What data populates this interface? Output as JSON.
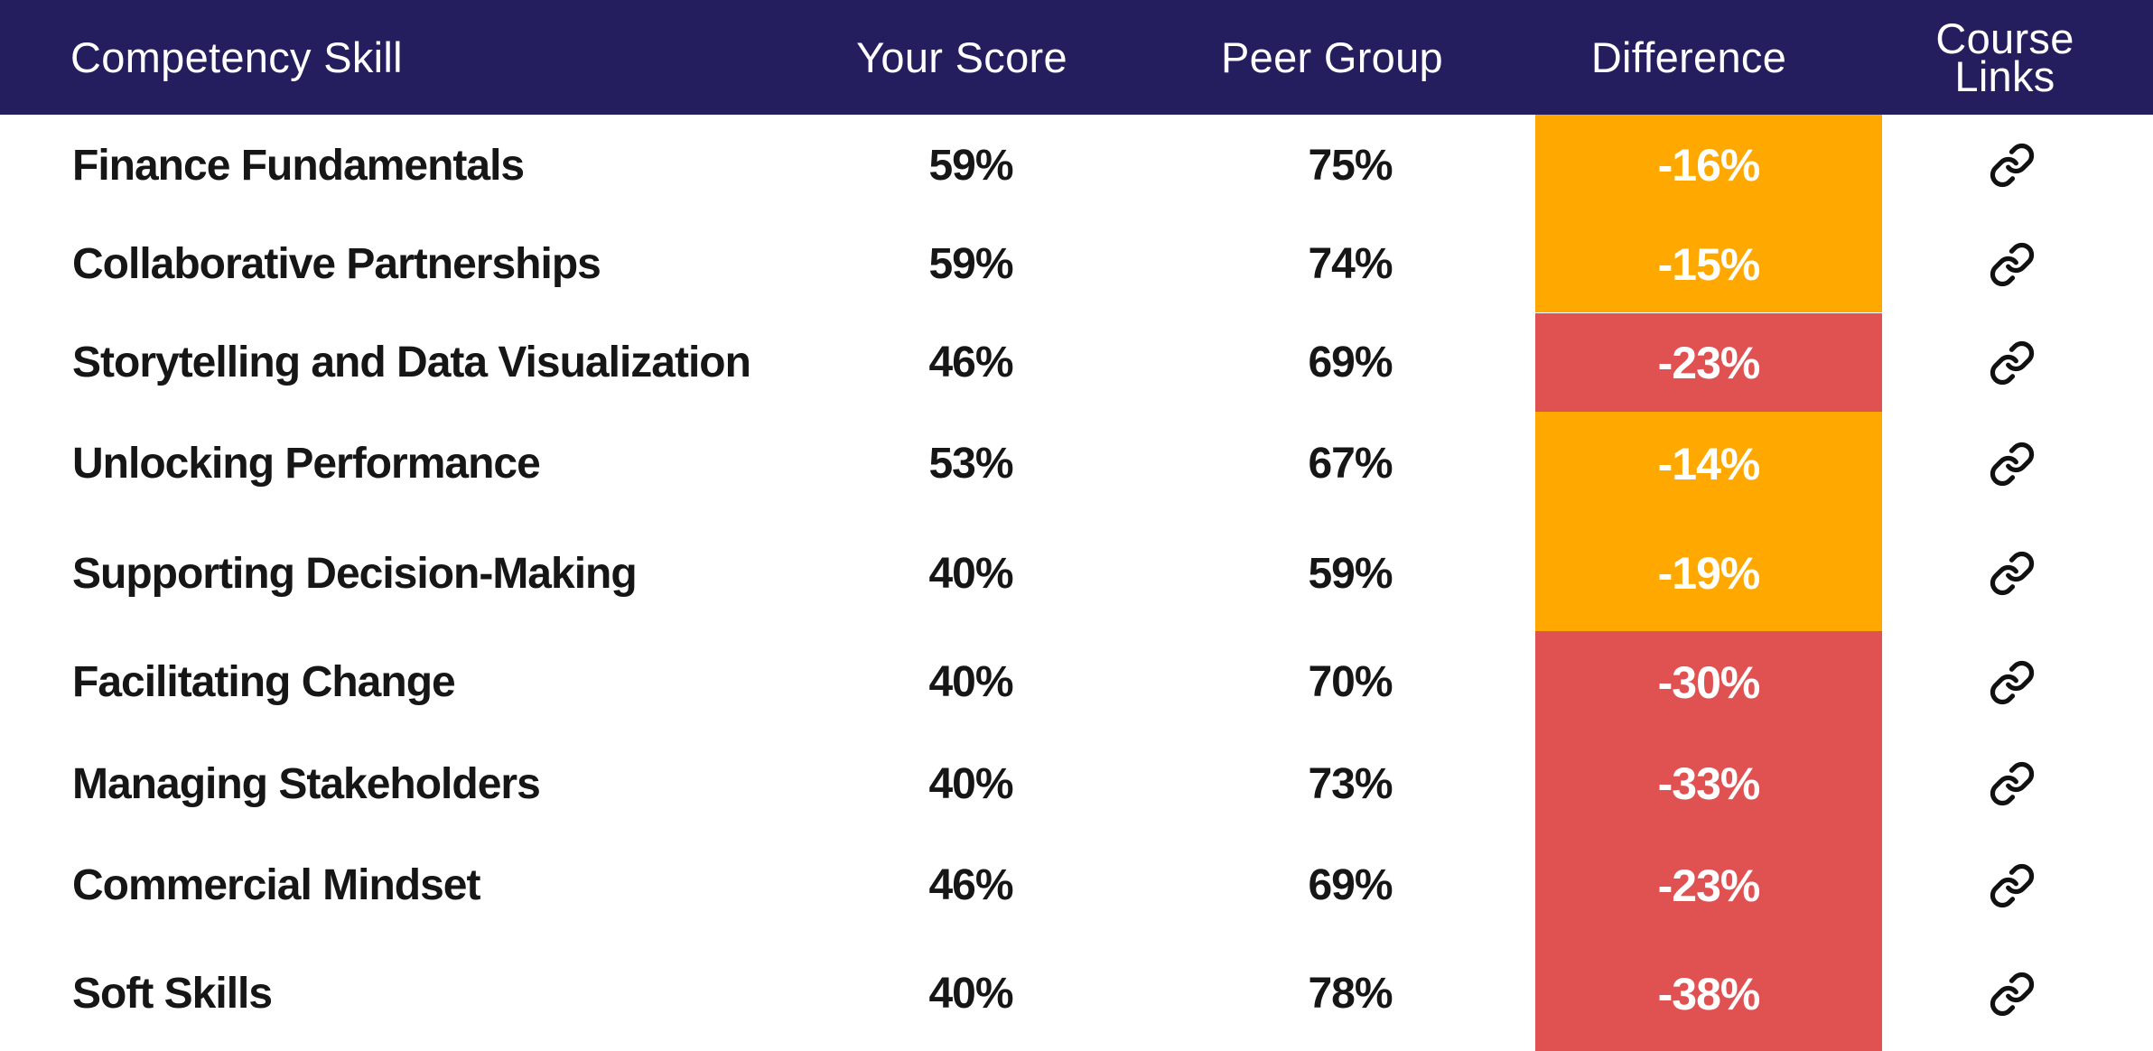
{
  "header": {
    "skill": "Competency Skill",
    "score": "Your Score",
    "peer": "Peer Group",
    "difference": "Difference",
    "links_line1": "Course",
    "links_line2": "Links"
  },
  "colors": {
    "header_bg": "#241e5e",
    "amber": "#ffa800",
    "red": "#e05252"
  },
  "rows": [
    {
      "skill": "Finance Fundamentals",
      "score": "59%",
      "peer": "75%",
      "difference": "-16%",
      "level": "amber",
      "link_icon": "link-icon"
    },
    {
      "skill": "Collaborative Partnerships",
      "score": "59%",
      "peer": "74%",
      "difference": "-15%",
      "level": "amber",
      "link_icon": "link-icon"
    },
    {
      "skill": "Storytelling and Data Visualization",
      "score": "46%",
      "peer": "69%",
      "difference": "-23%",
      "level": "red",
      "link_icon": "link-icon"
    },
    {
      "skill": "Unlocking Performance",
      "score": "53%",
      "peer": "67%",
      "difference": "-14%",
      "level": "amber",
      "link_icon": "link-icon"
    },
    {
      "skill": "Supporting Decision-Making",
      "score": "40%",
      "peer": "59%",
      "difference": "-19%",
      "level": "amber",
      "link_icon": "link-icon"
    },
    {
      "skill": "Facilitating Change",
      "score": "40%",
      "peer": "70%",
      "difference": "-30%",
      "level": "red",
      "link_icon": "link-icon"
    },
    {
      "skill": "Managing Stakeholders",
      "score": "40%",
      "peer": "73%",
      "difference": "-33%",
      "level": "red",
      "link_icon": "link-icon"
    },
    {
      "skill": "Commercial Mindset",
      "score": "46%",
      "peer": "69%",
      "difference": "-23%",
      "level": "red",
      "link_icon": "link-icon"
    },
    {
      "skill": "Soft Skills",
      "score": "40%",
      "peer": "78%",
      "difference": "-38%",
      "level": "red",
      "link_icon": "link-icon"
    }
  ]
}
